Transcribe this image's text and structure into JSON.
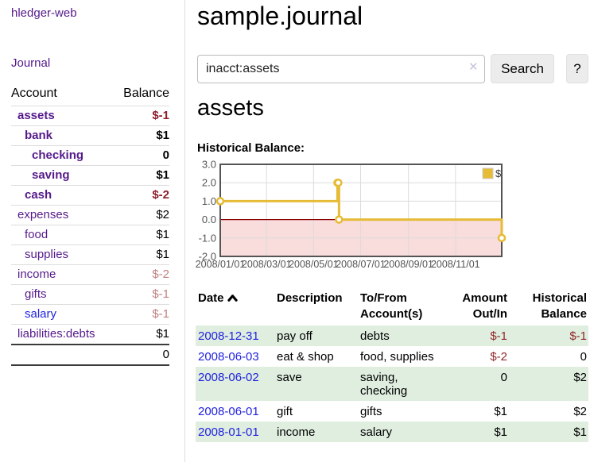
{
  "colors": {
    "link_purple": "#551a8b",
    "link_blue": "#2222e0",
    "negative_bold": "#8b1f2b",
    "negative_light": "#c08181",
    "negative_table": "#902828",
    "row_stripe_green": "#dfeedf",
    "chart_line_gold": "#e6bb35",
    "chart_negative_region": "#f9dcdc",
    "chart_zero_line": "#8b0000",
    "chart_border": "#545454",
    "chart_grid": "#dcdcdc",
    "button_gray": "#ececec"
  },
  "sidebar": {
    "app_title": "hledger-web",
    "journal_label": "Journal",
    "accounts_table": {
      "account_header": "Account",
      "balance_header": "Balance",
      "rows": [
        {
          "name": "assets",
          "depth": 1,
          "bold": true,
          "balance": "$-1",
          "balance_style": "neg-bold",
          "link_color": "purple"
        },
        {
          "name": "bank",
          "depth": 2,
          "bold": true,
          "balance": "$1",
          "balance_style": "pos",
          "link_color": "purple"
        },
        {
          "name": "checking",
          "depth": 3,
          "bold": true,
          "balance": "0",
          "balance_style": "pos",
          "link_color": "purple"
        },
        {
          "name": "saving",
          "depth": 3,
          "bold": true,
          "balance": "$1",
          "balance_style": "pos",
          "link_color": "purple"
        },
        {
          "name": "cash",
          "depth": 2,
          "bold": true,
          "balance": "$-2",
          "balance_style": "neg-bold",
          "link_color": "purple"
        },
        {
          "name": "expenses",
          "depth": 1,
          "bold": false,
          "balance": "$2",
          "balance_style": "pos",
          "link_color": "purple"
        },
        {
          "name": "food",
          "depth": 2,
          "bold": false,
          "balance": "$1",
          "balance_style": "pos",
          "link_color": "purple"
        },
        {
          "name": "supplies",
          "depth": 2,
          "bold": false,
          "balance": "$1",
          "balance_style": "pos",
          "link_color": "purple"
        },
        {
          "name": "income",
          "depth": 1,
          "bold": false,
          "balance": "$-2",
          "balance_style": "neg",
          "link_color": "purple"
        },
        {
          "name": "gifts",
          "depth": 2,
          "bold": false,
          "balance": "$-1",
          "balance_style": "neg",
          "link_color": "purple"
        },
        {
          "name": "salary",
          "depth": 2,
          "bold": false,
          "balance": "$-1",
          "balance_style": "neg",
          "link_color": "blue"
        },
        {
          "name": "liabilities:debts",
          "depth": 1,
          "bold": false,
          "balance": "$1",
          "balance_style": "pos",
          "link_color": "purple"
        }
      ],
      "total": "0"
    }
  },
  "main": {
    "title": "sample.journal",
    "search": {
      "value": "inacct:assets",
      "clear_icon_glyph": "✕",
      "button_label": "Search",
      "help_label": "?"
    },
    "account_heading": "assets",
    "chart_label": "Historical Balance:"
  },
  "chart_data": {
    "type": "line",
    "title": "Historical Balance",
    "step": true,
    "x_start": "2008-01-01",
    "x_end": "2008-12-31",
    "x_ticks": [
      "2008/01/01",
      "2008/03/01",
      "2008/05/01",
      "2008/07/01",
      "2008/09/01",
      "2008/11/01"
    ],
    "y_ticks": [
      "3.0",
      "2.0",
      "1.0",
      "0.0",
      "-1.0",
      "-2.0"
    ],
    "ylim": [
      -2,
      3
    ],
    "grid": true,
    "legend_position": "top-right",
    "series": [
      {
        "name": "$",
        "points": [
          {
            "date": "2008-01-01",
            "value": 1
          },
          {
            "date": "2008-06-01",
            "value": 2
          },
          {
            "date": "2008-06-02",
            "value": 2
          },
          {
            "date": "2008-06-03",
            "value": 0
          },
          {
            "date": "2008-12-31",
            "value": -1
          }
        ]
      }
    ]
  },
  "register": {
    "headers": {
      "date": "Date",
      "sort_icon": "chevron-up-icon",
      "description": "Description",
      "accounts": "To/From Account(s)",
      "amount": "Amount Out/In",
      "balance": "Historical Balance"
    },
    "rows": [
      {
        "date": "2008-12-31",
        "description": "pay off",
        "accounts": "debts",
        "amount": "$-1",
        "amount_negative": true,
        "balance": "$-1",
        "balance_negative": true
      },
      {
        "date": "2008-06-03",
        "description": "eat & shop",
        "accounts": "food, supplies",
        "amount": "$-2",
        "amount_negative": true,
        "balance": "0",
        "balance_negative": false
      },
      {
        "date": "2008-06-02",
        "description": "save",
        "accounts": "saving, checking",
        "amount": "0",
        "amount_negative": false,
        "balance": "$2",
        "balance_negative": false
      },
      {
        "date": "2008-06-01",
        "description": "gift",
        "accounts": "gifts",
        "amount": "$1",
        "amount_negative": false,
        "balance": "$2",
        "balance_negative": false
      },
      {
        "date": "2008-01-01",
        "description": "income",
        "accounts": "salary",
        "amount": "$1",
        "amount_negative": false,
        "balance": "$1",
        "balance_negative": false
      }
    ]
  }
}
